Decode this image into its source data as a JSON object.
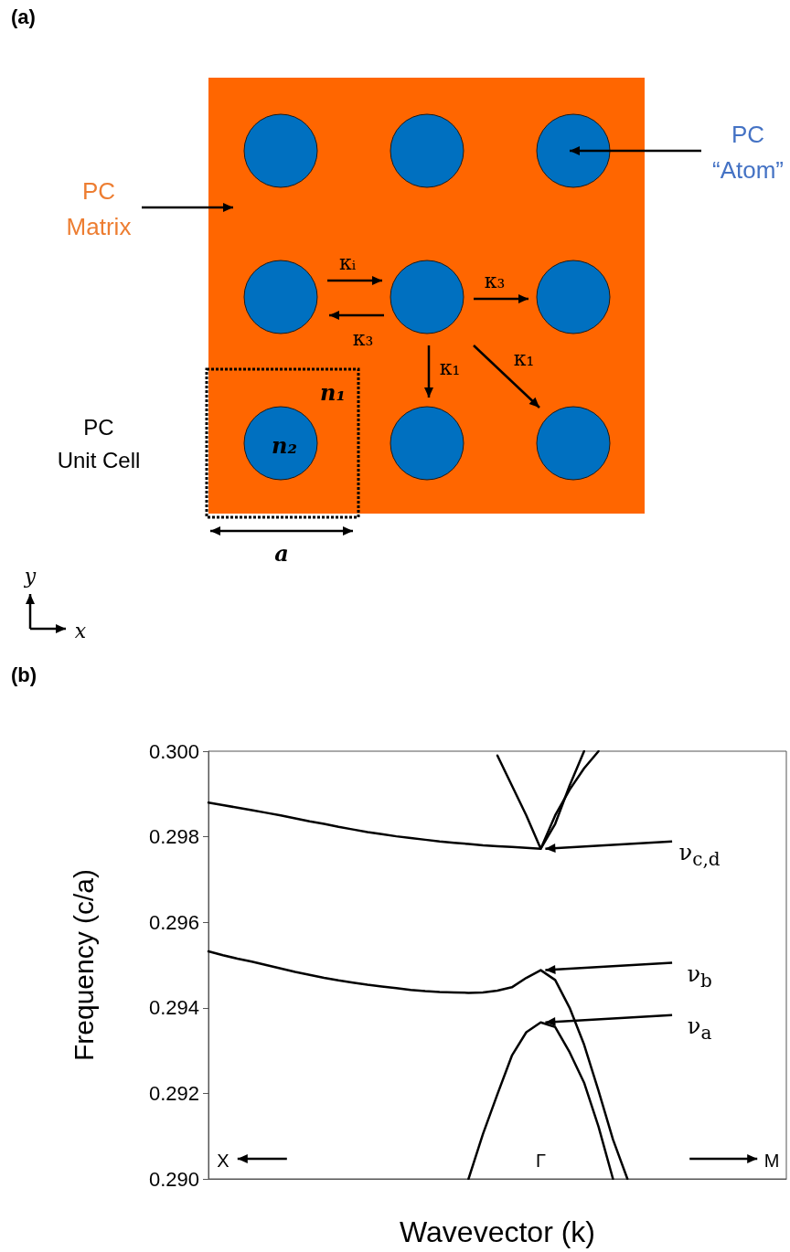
{
  "chart_data": [
    {
      "type": "other",
      "title": "(a)",
      "annotations": [
        "PC\nMatrix",
        "PC\n“Atom”",
        "PC\nUnit Cell",
        "κᵢ",
        "κ₃",
        "κ₃",
        "κ₁",
        "κ₁",
        "n₁",
        "n₂",
        "a",
        "y",
        "x"
      ]
    },
    {
      "type": "line",
      "title": "(b)",
      "xlabel": "Wavevector (k)",
      "ylabel": "Frequency (c/a)",
      "categories": [
        null,
        "X",
        null,
        null,
        null,
        null,
        null,
        null,
        null,
        null,
        null,
        null,
        null,
        null,
        null,
        null,
        null,
        null,
        null,
        null,
        null,
        null,
        null,
        "Γ",
        null,
        null,
        null,
        null,
        null,
        null,
        null,
        null,
        null,
        null,
        null,
        null,
        null,
        null,
        null,
        "M",
        null
      ],
      "ylim": [
        0.29,
        0.3
      ],
      "yticks": [
        {
          "value": 0.29,
          "label": "0.290"
        },
        {
          "value": 0.292,
          "label": "0.292"
        },
        {
          "value": 0.294,
          "label": "0.294"
        },
        {
          "value": 0.296,
          "label": "0.296"
        },
        {
          "value": 0.298,
          "label": "0.298"
        },
        {
          "value": 0.3,
          "label": "0.300"
        }
      ],
      "grid": false,
      "marker": "none",
      "line_style": "solid",
      "series": [
        {
          "color": "#000000",
          "values": [
            0.2988,
            0.29874,
            0.29868,
            0.29862,
            0.29856,
            0.2985,
            0.29843,
            0.29836,
            0.2983,
            0.29823,
            0.29817,
            0.29811,
            0.29806,
            0.29801,
            0.29797,
            0.29793,
            0.29789,
            0.29786,
            0.29783,
            0.2978,
            0.29778,
            0.29776,
            0.29774,
            0.29772,
            0.2983,
            0.2992,
            0.3,
            null,
            null,
            null,
            null,
            null,
            null,
            null,
            null,
            null,
            null,
            null,
            null,
            null,
            null
          ]
        },
        {
          "color": "#000000",
          "values": [
            null,
            null,
            null,
            null,
            null,
            null,
            null,
            null,
            null,
            null,
            null,
            null,
            null,
            null,
            null,
            null,
            null,
            null,
            null,
            null,
            0.2999,
            0.2992,
            0.2985,
            0.29772,
            0.2985,
            0.2991,
            0.2996,
            0.3,
            null,
            null,
            null,
            null,
            null,
            null,
            null,
            null,
            null,
            null,
            null,
            null,
            null
          ]
        },
        {
          "color": "#000000",
          "values": [
            0.29532,
            0.29523,
            0.29515,
            0.29508,
            0.295,
            0.29492,
            0.29484,
            0.29477,
            0.2947,
            0.29464,
            0.29459,
            0.29454,
            0.2945,
            0.29446,
            0.29442,
            0.29439,
            0.29437,
            0.29436,
            0.29435,
            0.29436,
            0.2944,
            0.29448,
            0.2947,
            0.29488,
            0.29465,
            0.294,
            0.29314,
            0.29206,
            0.29092,
            0.29,
            null,
            null,
            null,
            null,
            null,
            null,
            null,
            null,
            null,
            null,
            null
          ]
        },
        {
          "color": "#000000",
          "values": [
            null,
            null,
            null,
            null,
            null,
            null,
            null,
            null,
            null,
            null,
            null,
            null,
            null,
            null,
            null,
            null,
            null,
            null,
            0.29,
            0.29105,
            0.29198,
            0.29288,
            0.29343,
            0.29366,
            0.29355,
            0.29296,
            0.29225,
            0.29122,
            0.29,
            null,
            null,
            null,
            null,
            null,
            null,
            null,
            null,
            null,
            null,
            null,
            null
          ]
        }
      ],
      "annotations": [
        {
          "text": "ν$_{c,d}$",
          "x": "Γ",
          "y": 0.29772
        },
        {
          "text": "ν$_{b}$",
          "x": "Γ",
          "y": 0.29488
        },
        {
          "text": "ν$_{a}$",
          "x": "Γ",
          "y": 0.29366
        }
      ]
    }
  ]
}
